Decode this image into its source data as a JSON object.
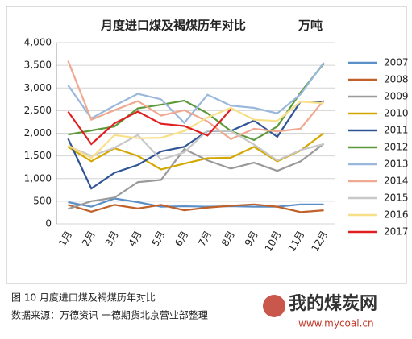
{
  "chart_data": {
    "type": "line",
    "title": "月度进口煤及褐煤历年对比",
    "unit": "万吨",
    "caption": "图 10  月度进口煤及褐煤历年对比",
    "source": "数据来源：万德资讯  一德期货北京营业部整理",
    "watermark": "我的煤炭网",
    "watermark_url": "www.mycoal.cn",
    "categories": [
      "1月",
      "2月",
      "3月",
      "4月",
      "5月",
      "6月",
      "7月",
      "8月",
      "9月",
      "10月",
      "11月",
      "12月"
    ],
    "ylim": [
      0,
      4000
    ],
    "yticks": [
      0,
      500,
      {
        "value": 1000,
        "label": "1,000"
      },
      {
        "value": 1500,
        "label": "1,500"
      },
      {
        "value": 2000,
        "label": "2,000"
      },
      {
        "value": 2500,
        "label": "2,500"
      },
      {
        "value": 3000,
        "label": "3,000"
      },
      {
        "value": 3500,
        "label": "3,500"
      },
      {
        "value": 4000,
        "label": "4,000"
      }
    ],
    "grid": true,
    "legend": "right",
    "series": [
      {
        "name": "2007",
        "color": "#5b8fc7",
        "values": [
          480,
          380,
          560,
          480,
          380,
          390,
          380,
          390,
          380,
          380,
          430,
          430
        ]
      },
      {
        "name": "2008",
        "color": "#c0612b",
        "values": [
          420,
          270,
          420,
          340,
          420,
          300,
          360,
          400,
          430,
          380,
          260,
          300
        ]
      },
      {
        "name": "2009",
        "color": "#9a9a9a",
        "values": [
          330,
          500,
          580,
          920,
          970,
          1650,
          1400,
          1220,
          1350,
          1170,
          1380,
          1770
        ]
      },
      {
        "name": "2010",
        "color": "#d4a800",
        "values": [
          1700,
          1380,
          1670,
          1500,
          1200,
          1330,
          1450,
          1460,
          1700,
          1380,
          1620,
          2000
        ]
      },
      {
        "name": "2011",
        "color": "#2f5597",
        "values": [
          1880,
          780,
          1130,
          1300,
          1600,
          1700,
          2050,
          2050,
          2280,
          1920,
          2700,
          2700
        ]
      },
      {
        "name": "2012",
        "color": "#5a9a3a",
        "values": [
          1970,
          2060,
          2150,
          2550,
          2630,
          2720,
          2440,
          2050,
          1850,
          2150,
          2900,
          3540
        ]
      },
      {
        "name": "2013",
        "color": "#9ab7dc",
        "values": [
          3060,
          2330,
          2610,
          2870,
          2750,
          2230,
          2850,
          2610,
          2560,
          2440,
          2860,
          3560
        ]
      },
      {
        "name": "2014",
        "color": "#f0a890",
        "values": [
          3600,
          2300,
          2510,
          2710,
          2390,
          2510,
          2260,
          1870,
          2100,
          2040,
          2100,
          2730
        ]
      },
      {
        "name": "2015",
        "color": "#c8c8c8",
        "values": [
          1720,
          1500,
          1680,
          1960,
          1420,
          1580,
          2060,
          2050,
          1750,
          1400,
          1630,
          1760
        ]
      },
      {
        "name": "2016",
        "color": "#f8e08a",
        "values": [
          1730,
          1450,
          1960,
          1890,
          1900,
          2050,
          2350,
          2560,
          2300,
          2270,
          2700,
          2660
        ]
      },
      {
        "name": "2017",
        "color": "#e02020",
        "values": [
          2480,
          1760,
          2220,
          2480,
          2210,
          2160,
          1950,
          2530,
          null,
          null,
          null,
          null
        ]
      }
    ]
  }
}
